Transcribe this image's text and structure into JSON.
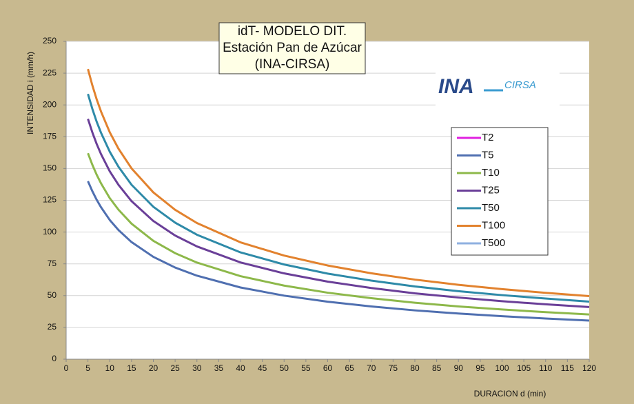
{
  "chart_data": {
    "type": "line",
    "title": [
      "idT- MODELO DIT.",
      "Estación Pan de Azúcar",
      "(INA-CIRSA)"
    ],
    "logo": {
      "main": "INA",
      "side": "CIRSA"
    },
    "x_label": "DURACION d (min)",
    "y_label": "INTENSIDAD i (mm/h)",
    "x": [
      5,
      6,
      7,
      8,
      10,
      12,
      15,
      20,
      25,
      30,
      40,
      50,
      60,
      70,
      80,
      90,
      100,
      110,
      120
    ],
    "series": [
      {
        "name": "T2",
        "color": "#e020e0",
        "values": [
          null,
          null,
          null,
          null,
          null,
          null,
          null,
          null,
          null,
          null,
          null,
          null,
          null,
          null,
          null,
          null,
          null,
          null,
          null
        ]
      },
      {
        "name": "T5",
        "color": "#4f6fb0",
        "values": [
          140,
          132.2,
          125.4,
          119.5,
          109.5,
          101.6,
          92.1,
          80.5,
          72.1,
          65.7,
          56.4,
          50.0,
          45.2,
          41.5,
          38.4,
          35.9,
          33.8,
          32.0,
          30.4
        ]
      },
      {
        "name": "T10",
        "color": "#8db84a",
        "values": [
          162.0,
          153.0,
          145.1,
          138.3,
          126.7,
          117.6,
          106.6,
          93.1,
          83.4,
          76.0,
          65.3,
          57.9,
          52.3,
          48.0,
          44.4,
          41.5,
          39.1,
          37.0,
          35.2
        ]
      },
      {
        "name": "T25",
        "color": "#6a3f98",
        "values": [
          189.0,
          178.5,
          169.3,
          161.3,
          147.8,
          137.2,
          124.3,
          108.7,
          97.3,
          88.7,
          76.1,
          67.5,
          61.0,
          56.0,
          51.8,
          48.5,
          45.6,
          43.2,
          41.0
        ]
      },
      {
        "name": "T50",
        "color": "#2e8aa8",
        "values": [
          208.6,
          197.0,
          186.8,
          178.1,
          163.2,
          151.4,
          137.2,
          119.9,
          107.4,
          97.9,
          84.0,
          74.5,
          67.3,
          61.8,
          57.2,
          53.5,
          50.4,
          47.7,
          45.3
        ]
      },
      {
        "name": "T100",
        "color": "#e2822e",
        "values": [
          228.2,
          215.5,
          204.4,
          194.8,
          178.5,
          165.6,
          150.1,
          131.2,
          117.5,
          107.1,
          91.9,
          81.5,
          73.7,
          67.6,
          62.6,
          58.5,
          55.1,
          52.2,
          49.6
        ]
      },
      {
        "name": "T500",
        "color": "#8fb0e0",
        "values": [
          null,
          null,
          null,
          null,
          null,
          null,
          null,
          null,
          null,
          null,
          null,
          null,
          null,
          null,
          null,
          null,
          null,
          null,
          null
        ]
      }
    ],
    "xlim": [
      0,
      120
    ],
    "xticks": [
      0,
      5,
      10,
      15,
      20,
      25,
      30,
      35,
      40,
      45,
      50,
      55,
      60,
      65,
      70,
      75,
      80,
      85,
      90,
      95,
      100,
      105,
      110,
      115,
      120
    ],
    "ylim": [
      0,
      250
    ],
    "yticks": [
      0,
      25,
      50,
      75,
      100,
      125,
      150,
      175,
      200,
      225,
      250
    ],
    "grid": true
  }
}
